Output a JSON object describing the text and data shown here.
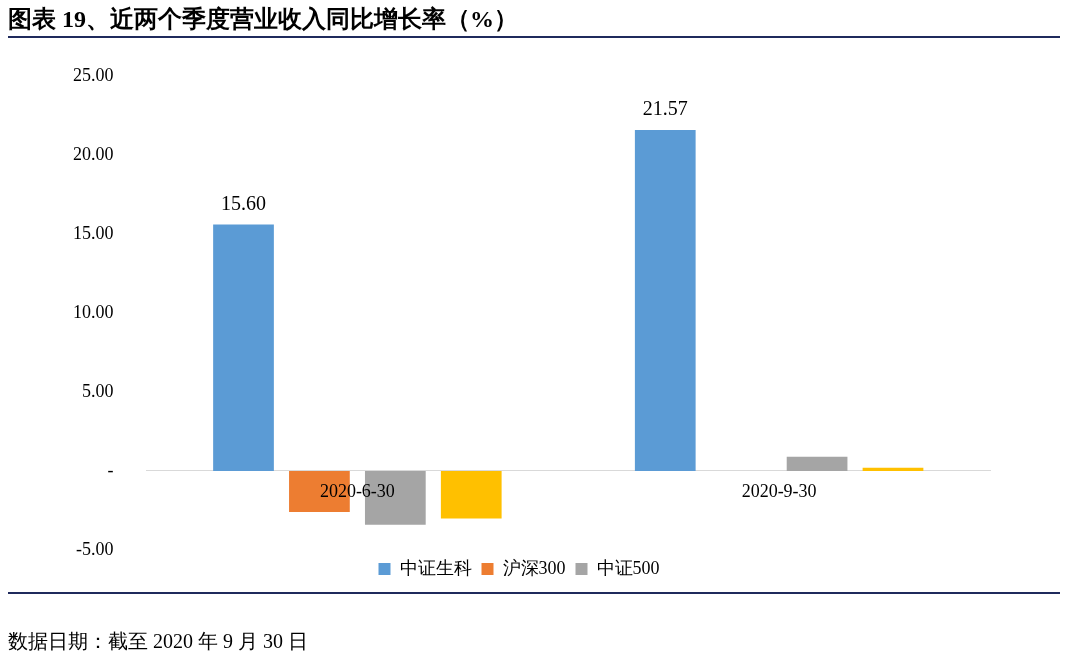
{
  "chart_data": {
    "type": "bar",
    "title": "图表 19、近两个季度营业收入同比增长率（%）",
    "categories": [
      "2020-6-30",
      "2020-9-30"
    ],
    "series": [
      {
        "name": "中证生科",
        "color": "#5b9bd5",
        "values": [
          15.6,
          21.57
        ]
      },
      {
        "name": "沪深300",
        "color": "#ed7d31",
        "values": [
          -2.6,
          0.0
        ]
      },
      {
        "name": "中证500",
        "color": "#a5a5a5",
        "values": [
          -3.4,
          0.9
        ]
      },
      {
        "color": "#ffc000",
        "values": [
          -3.0,
          0.2
        ]
      }
    ],
    "value_labels": [
      [
        "15.60",
        "21.57"
      ],
      [
        null,
        null
      ],
      [
        null,
        null
      ],
      [
        null,
        null
      ]
    ],
    "ylim": [
      -5,
      25
    ],
    "yticks": [
      {
        "value": -5,
        "label": "-5.00"
      },
      {
        "value": 0,
        "label": "-"
      },
      {
        "value": 5,
        "label": "5.00"
      },
      {
        "value": 10,
        "label": "10.00"
      },
      {
        "value": 15,
        "label": "15.00"
      },
      {
        "value": 20,
        "label": "20.00"
      },
      {
        "value": 25,
        "label": "25.00"
      }
    ],
    "grid": false,
    "legend": "bottom",
    "annotations": [
      "数据日期：截至 2020 年 9 月 30 日"
    ]
  }
}
